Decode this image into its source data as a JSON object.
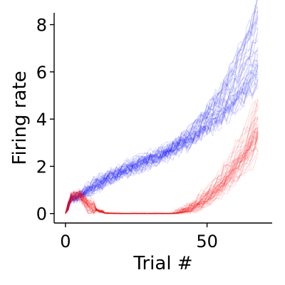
{
  "chart_data": {
    "type": "line",
    "xlabel": "Trial #",
    "ylabel": "Firing rate",
    "xlim": [
      -4,
      73
    ],
    "ylim": [
      -0.4,
      8.5
    ],
    "x_ticks": [
      0,
      50
    ],
    "x_tick_labels": [
      "0",
      "50"
    ],
    "y_ticks": [
      0,
      2,
      4,
      6,
      8
    ],
    "y_tick_labels": [
      "0",
      "2",
      "4",
      "6",
      "8"
    ],
    "grid": false,
    "legend": "none",
    "trials": 69,
    "series": [
      {
        "color": "#0000ff",
        "opacity": 0.15,
        "traces": 40,
        "mean_y": [
          [
            0,
            0.0
          ],
          [
            2,
            0.65
          ],
          [
            5,
            0.75
          ],
          [
            10,
            1.15
          ],
          [
            15,
            1.5
          ],
          [
            20,
            1.8
          ],
          [
            25,
            2.05
          ],
          [
            30,
            2.3
          ],
          [
            35,
            2.55
          ],
          [
            40,
            2.9
          ],
          [
            45,
            3.3
          ],
          [
            50,
            3.9
          ],
          [
            55,
            4.5
          ],
          [
            60,
            5.3
          ],
          [
            65,
            6.3
          ],
          [
            69,
            7.2
          ]
        ]
      },
      {
        "color": "#ff0000",
        "opacity": 0.15,
        "traces": 40,
        "mean_y": [
          [
            0,
            0.0
          ],
          [
            2,
            0.7
          ],
          [
            5,
            0.8
          ],
          [
            8,
            0.35
          ],
          [
            12,
            0.1
          ],
          [
            20,
            0.0
          ],
          [
            30,
            0.0
          ],
          [
            37,
            0.0
          ],
          [
            40,
            0.1
          ],
          [
            45,
            0.4
          ],
          [
            50,
            0.9
          ],
          [
            55,
            1.5
          ],
          [
            60,
            2.3
          ],
          [
            65,
            3.3
          ],
          [
            69,
            4.2
          ]
        ]
      }
    ]
  }
}
